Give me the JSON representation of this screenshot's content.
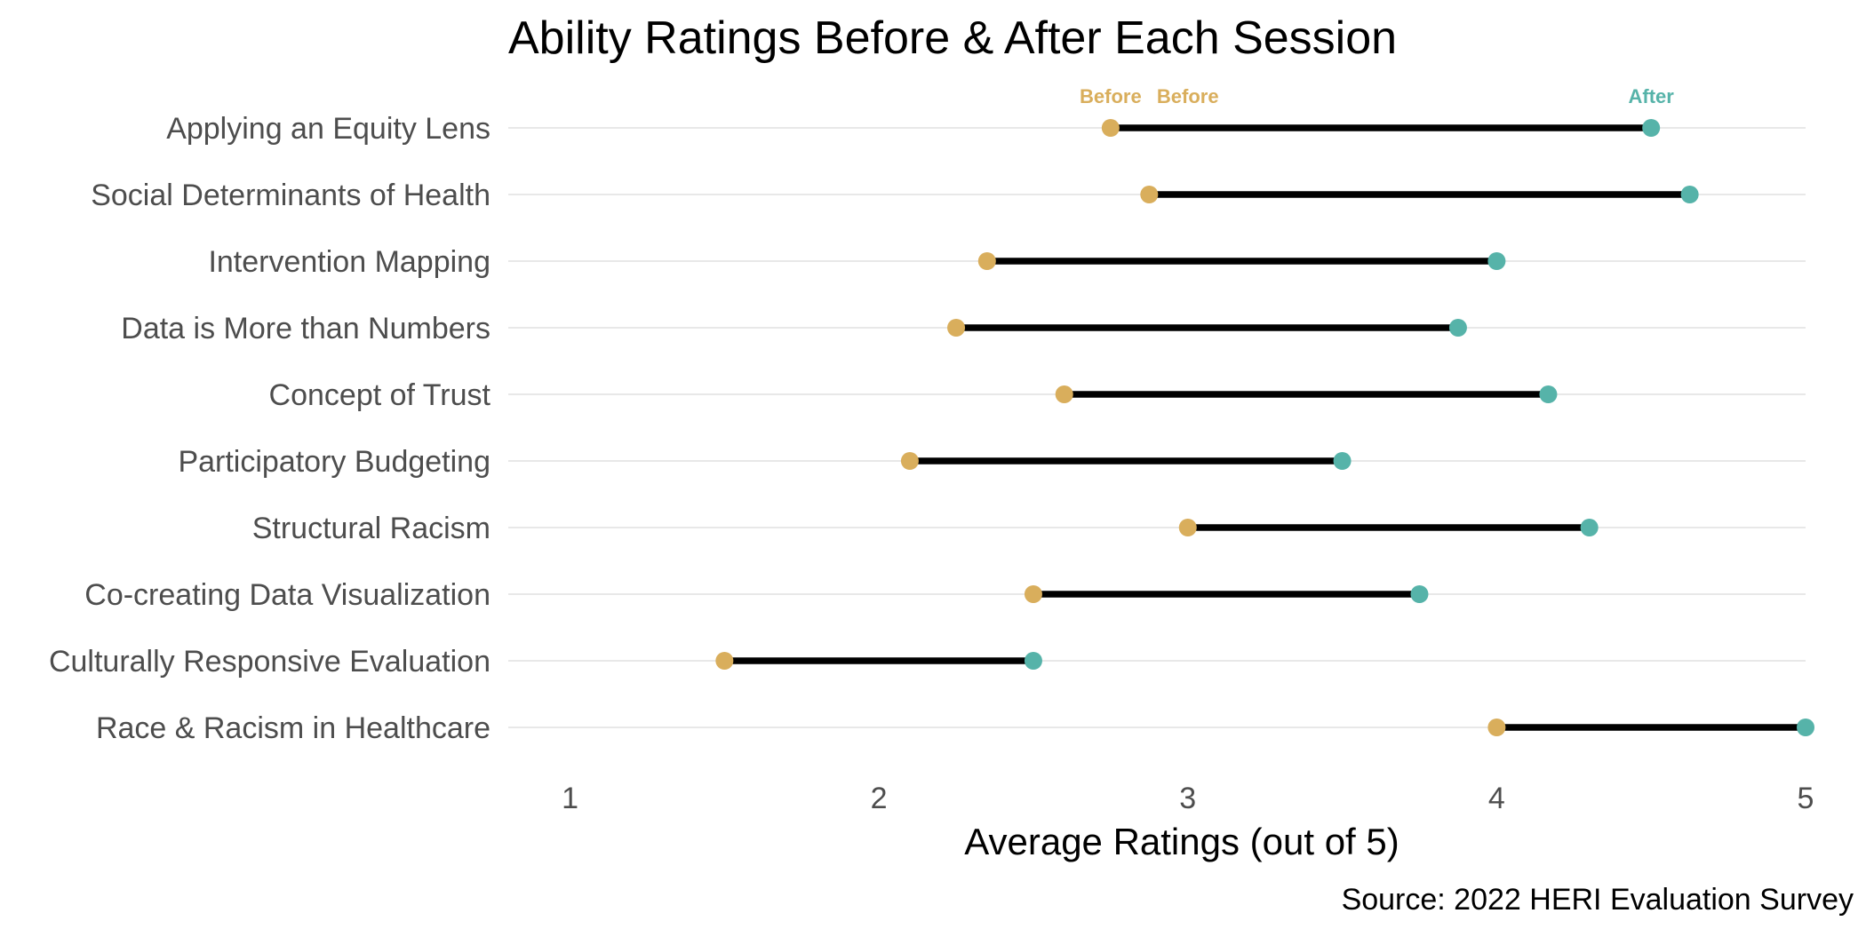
{
  "chart_data": {
    "type": "dumbbell",
    "title": "Ability Ratings Before & After Each Session",
    "xlabel": "Average Ratings (out of 5)",
    "ylabel": "",
    "caption": "Source: 2022 HERI Evaluation Survey",
    "xlim": [
      0.8,
      5.0
    ],
    "x_ticks": [
      "1",
      "2",
      "3",
      "4",
      "5"
    ],
    "grid": "horizontal major gridlines",
    "categories": [
      "Applying an Equity Lens",
      "Social Determinants of Health",
      "Intervention Mapping",
      "Data is More than Numbers",
      "Concept of Trust",
      "Participatory Budgeting",
      "Structural Racism",
      "Co-creating Data Visualization",
      "Culturally Responsive Evaluation",
      "Race & Racism in Healthcare"
    ],
    "series": [
      {
        "name": "Before",
        "color": "#D9AE5C",
        "values": [
          2.75,
          2.875,
          2.35,
          2.25,
          2.6,
          2.1,
          3.0,
          2.5,
          1.5,
          4.0
        ]
      },
      {
        "name": "After",
        "color": "#56B3A9",
        "values": [
          4.5,
          4.625,
          4.0,
          3.875,
          4.167,
          3.5,
          4.3,
          3.75,
          2.5,
          5.0
        ]
      }
    ],
    "annotations": [
      {
        "text": "Before",
        "x": 2.75,
        "series": "Before"
      },
      {
        "text": "Before",
        "x": 3.0,
        "series": "Before"
      },
      {
        "text": "After",
        "x": 4.5,
        "series": "After"
      }
    ]
  }
}
